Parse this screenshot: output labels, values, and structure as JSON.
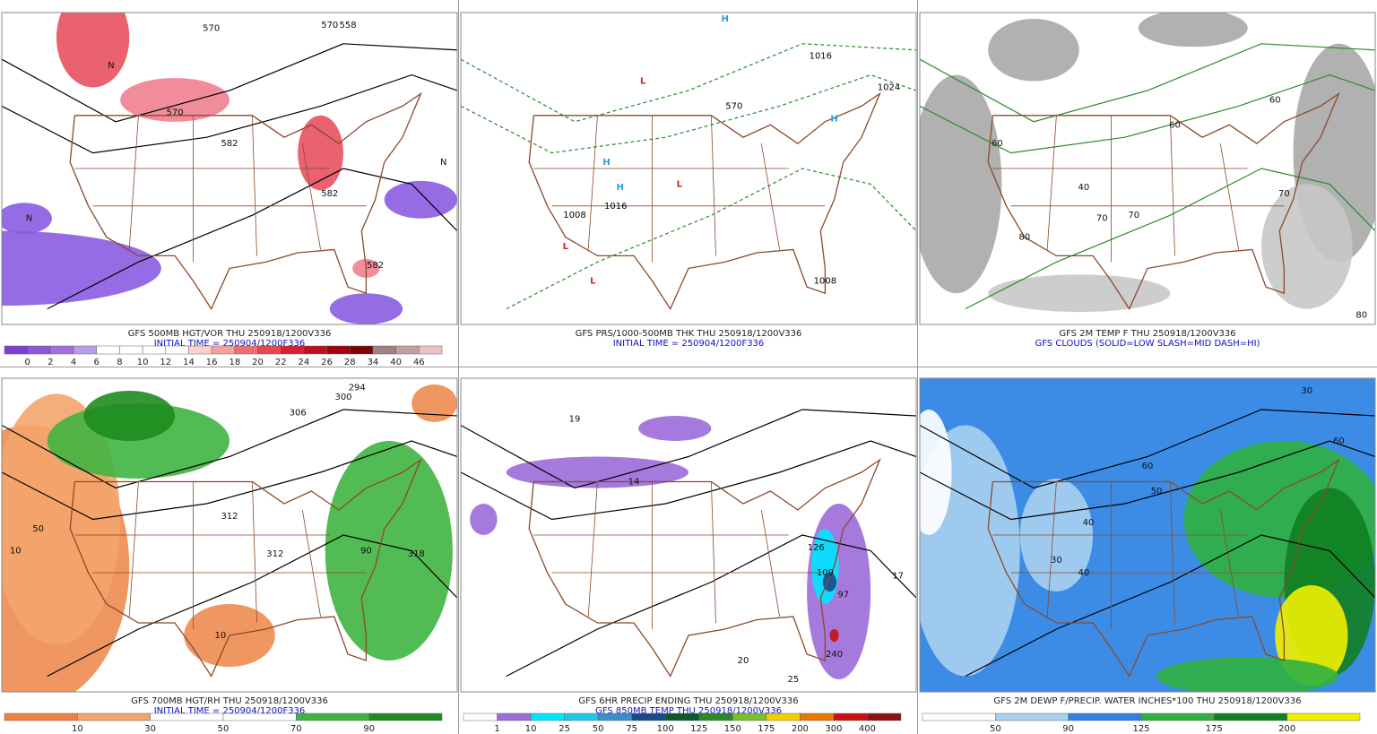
{
  "panels": [
    {
      "caption": [
        "GFS 500MB HGT/VOR THU 250918/1200V336",
        "INITIAL TIME = 250904/1200F336"
      ],
      "map_labels": [
        "558",
        "570",
        "570",
        "570",
        "582",
        "582",
        "582",
        "N",
        "N",
        "N"
      ],
      "colorbar": {
        "colors": [
          "#7a3fd0",
          "#8c56d8",
          "#a070e0",
          "#b8a0e8",
          "#ffffff",
          "#ffffff",
          "#ffffff",
          "#ffffff",
          "#ffd0d0",
          "#f8a0a0",
          "#f07070",
          "#e84850",
          "#d82030",
          "#c01020",
          "#a00010",
          "#800000",
          "#a08080",
          "#c0a0a0",
          "#f0c0c0"
        ],
        "labels": [
          0,
          2,
          4,
          6,
          8,
          10,
          12,
          14,
          16,
          18,
          20,
          22,
          24,
          26,
          28,
          34,
          40,
          46
        ]
      }
    },
    {
      "caption": [
        "GFS PRS/1000-500MB THK THU 250918/1200V336",
        "INITIAL TIME = 250904/1200F336"
      ],
      "map_labels": [
        "H",
        "H",
        "H",
        "H",
        "L",
        "L",
        "L",
        "L",
        "1016",
        "1008",
        "1024",
        "1016",
        "1008",
        "570"
      ]
    },
    {
      "caption": [
        "GFS 2M TEMP F THU 250918/1200V336",
        "GFS CLOUDS (SOLID=LOW SLASH=MID DASH=HI)"
      ],
      "map_labels": [
        "60",
        "70",
        "80",
        "60",
        "70",
        "40",
        "60",
        "80",
        "70"
      ]
    },
    {
      "caption": [
        "GFS 700MB HGT/RH THU 250918/1200V336",
        "INITIAL TIME = 250904/1200F336"
      ],
      "map_labels": [
        "294",
        "300",
        "306",
        "312",
        "312",
        "318",
        "50",
        "10",
        "90",
        "10"
      ],
      "colorbar": {
        "colors": [
          "#ee8040",
          "#f4a46c",
          "#ffffff",
          "#ffffff",
          "#40b440",
          "#1e8c1e"
        ],
        "labels": [
          10,
          30,
          50,
          70,
          90
        ]
      }
    },
    {
      "caption": [
        "GFS 6HR PRECIP ENDING THU 250918/1200V336",
        "GFS 850MB TEMP THU 250918/1200V336"
      ],
      "map_labels": [
        "14",
        "19",
        "126",
        "109",
        "97",
        "17",
        "240",
        "25",
        "20"
      ],
      "colorbar": {
        "colors": [
          "#ffffff",
          "#9c6cd8",
          "#00e5ff",
          "#20c8e8",
          "#3a8fc8",
          "#1a4a8a",
          "#0a5a2a",
          "#2a8a2a",
          "#7ac02a",
          "#f0d000",
          "#e87800",
          "#c81010",
          "#8a1010"
        ],
        "labels": [
          1,
          10,
          25,
          50,
          75,
          100,
          125,
          150,
          175,
          200,
          300,
          400
        ]
      }
    },
    {
      "caption": [
        "GFS 2M DEWP F/PRECIP. WATER INCHES*100 THU 250918/1200V336"
      ],
      "map_labels": [
        "30",
        "40",
        "50",
        "60",
        "40",
        "30",
        "60"
      ],
      "colorbar": {
        "colors": [
          "#ffffff",
          "#a8d0f0",
          "#3080e0",
          "#30b040",
          "#108020",
          "#f0f000"
        ],
        "labels": [
          50,
          90,
          125,
          175,
          200
        ]
      }
    }
  ]
}
